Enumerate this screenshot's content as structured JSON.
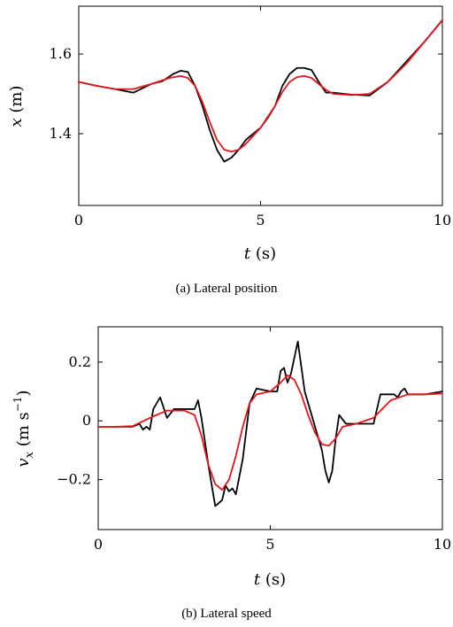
{
  "chart_data": [
    {
      "type": "line",
      "caption": "(a) Lateral position",
      "xlabel_var": "t",
      "xlabel_unit": " (s)",
      "ylabel_var": "x",
      "ylabel_unit": " (m)",
      "xlim": [
        0,
        10
      ],
      "ylim": [
        1.22,
        1.72
      ],
      "xticks": [
        0,
        5,
        10
      ],
      "yticks": [
        1.4,
        1.6
      ],
      "ytick_labels": [
        "1.4",
        "1.6"
      ],
      "grid": false,
      "series": [
        {
          "color": "#000000",
          "x": [
            0,
            0.5,
            1.0,
            1.5,
            2.0,
            2.3,
            2.6,
            2.8,
            3.0,
            3.2,
            3.4,
            3.6,
            3.8,
            4.0,
            4.2,
            4.4,
            4.6,
            5.0,
            5.2,
            5.4,
            5.6,
            5.8,
            6.0,
            6.2,
            6.4,
            6.6,
            6.8,
            7.0,
            7.5,
            8.0,
            8.5,
            9.0,
            9.5,
            10.0
          ],
          "y": [
            1.53,
            1.52,
            1.512,
            1.503,
            1.525,
            1.532,
            1.55,
            1.558,
            1.555,
            1.52,
            1.47,
            1.41,
            1.36,
            1.33,
            1.34,
            1.36,
            1.385,
            1.415,
            1.44,
            1.47,
            1.52,
            1.55,
            1.565,
            1.565,
            1.56,
            1.53,
            1.503,
            1.503,
            1.498,
            1.496,
            1.53,
            1.58,
            1.63,
            1.685
          ]
        },
        {
          "color": "#e8141a",
          "x": [
            0,
            0.5,
            1.0,
            1.5,
            2.0,
            2.5,
            2.8,
            3.0,
            3.2,
            3.4,
            3.6,
            3.8,
            4.0,
            4.2,
            4.4,
            4.6,
            5.0,
            5.4,
            5.6,
            5.8,
            6.0,
            6.2,
            6.4,
            6.6,
            6.8,
            7.0,
            7.5,
            8.0,
            8.5,
            9.0,
            9.5,
            10.0
          ],
          "y": [
            1.53,
            1.52,
            1.512,
            1.512,
            1.525,
            1.54,
            1.545,
            1.54,
            1.52,
            1.48,
            1.43,
            1.385,
            1.36,
            1.355,
            1.36,
            1.375,
            1.415,
            1.47,
            1.505,
            1.53,
            1.542,
            1.545,
            1.54,
            1.525,
            1.51,
            1.5,
            1.497,
            1.5,
            1.53,
            1.575,
            1.63,
            1.685
          ]
        }
      ]
    },
    {
      "type": "line",
      "caption": "(b) Lateral speed",
      "xlabel_var": "t",
      "xlabel_unit": " (s)",
      "ylabel_var": "v",
      "ylabel_sub": "x",
      "ylabel_unit_open": " (m s",
      "ylabel_unit_sup": "−1",
      "ylabel_unit_close": ")",
      "xlim": [
        0,
        10
      ],
      "ylim": [
        -0.37,
        0.32
      ],
      "xticks": [
        0,
        5,
        10
      ],
      "yticks": [
        -0.2,
        0,
        0.2
      ],
      "ytick_labels": [
        "−0.2",
        "0",
        "0.2"
      ],
      "grid": false,
      "series": [
        {
          "color": "#000000",
          "x": [
            0,
            0.5,
            1.0,
            1.2,
            1.3,
            1.4,
            1.5,
            1.6,
            1.8,
            2.0,
            2.2,
            2.4,
            2.8,
            2.9,
            3.0,
            3.2,
            3.4,
            3.6,
            3.7,
            3.8,
            3.9,
            4.0,
            4.2,
            4.4,
            4.6,
            5.0,
            5.2,
            5.3,
            5.4,
            5.5,
            5.6,
            5.8,
            6.0,
            6.2,
            6.4,
            6.5,
            6.6,
            6.7,
            6.8,
            6.9,
            7.0,
            7.2,
            7.5,
            8.0,
            8.2,
            8.4,
            8.6,
            8.7,
            8.8,
            8.9,
            9.0,
            9.5,
            10.0
          ],
          "y": [
            -0.02,
            -0.02,
            -0.02,
            -0.01,
            -0.03,
            -0.02,
            -0.03,
            0.04,
            0.08,
            0.01,
            0.04,
            0.04,
            0.04,
            0.07,
            0.01,
            -0.15,
            -0.29,
            -0.27,
            -0.22,
            -0.24,
            -0.23,
            -0.25,
            -0.13,
            0.06,
            0.11,
            0.1,
            0.1,
            0.17,
            0.18,
            0.13,
            0.16,
            0.27,
            0.1,
            0.02,
            -0.06,
            -0.1,
            -0.17,
            -0.21,
            -0.17,
            -0.06,
            0.02,
            -0.01,
            -0.01,
            -0.01,
            0.09,
            0.09,
            0.09,
            0.08,
            0.1,
            0.11,
            0.09,
            0.09,
            0.1
          ]
        },
        {
          "color": "#e8141a",
          "x": [
            0,
            0.5,
            1.0,
            1.5,
            2.0,
            2.5,
            2.8,
            3.0,
            3.2,
            3.4,
            3.6,
            3.8,
            4.0,
            4.2,
            4.4,
            4.6,
            5.0,
            5.3,
            5.5,
            5.7,
            5.9,
            6.1,
            6.3,
            6.5,
            6.7,
            6.9,
            7.1,
            7.5,
            8.0,
            8.5,
            9.0,
            9.5,
            10.0
          ],
          "y": [
            -0.02,
            -0.02,
            -0.018,
            0.01,
            0.035,
            0.035,
            0.02,
            -0.05,
            -0.15,
            -0.215,
            -0.235,
            -0.2,
            -0.12,
            -0.02,
            0.06,
            0.09,
            0.1,
            0.13,
            0.155,
            0.14,
            0.09,
            0.02,
            -0.04,
            -0.08,
            -0.085,
            -0.06,
            -0.02,
            -0.01,
            0.01,
            0.07,
            0.09,
            0.09,
            0.093
          ]
        }
      ]
    }
  ]
}
